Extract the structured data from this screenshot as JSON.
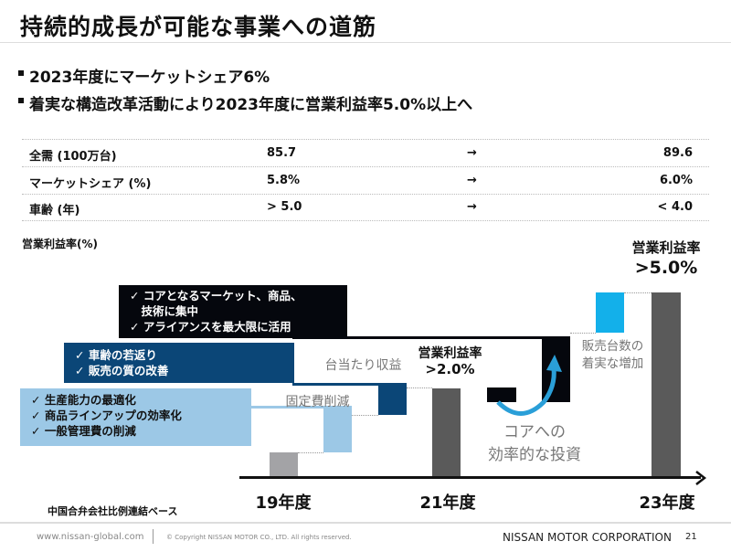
{
  "title": "持続的成長が可能な事業への道筋",
  "bullets": [
    "2023年度にマーケットシェア6%",
    "着実な構造改革活動により2023年度に営業利益率5.0%以上へ"
  ],
  "table": [
    {
      "label": "全需 (100万台)",
      "from": "85.7",
      "arrow": "→",
      "to": "89.6"
    },
    {
      "label": "マーケットシェア (%)",
      "from": "5.8%",
      "arrow": "→",
      "to": "6.0%"
    },
    {
      "label": "車齢 (年)",
      "from": "> 5.0",
      "arrow": "→",
      "to": "< 4.0"
    }
  ],
  "chart": {
    "ylabel": "営業利益率(%)",
    "black_box": [
      "✓ コアとなるマーケット、商品、",
      "　技術に集中",
      "✓ アライアンスを最大限に活用"
    ],
    "dark_box": [
      "✓ 車齢の若返り",
      "✓ 販売の質の改善"
    ],
    "light_box": [
      "✓ 生産能力の最適化",
      "✓ 商品ラインアップの効率化",
      "✓ 一般管理費の削減"
    ],
    "fixed_cost": "固定費削減",
    "unit_revenue": "台当たり収益",
    "mid_label": "営業利益率",
    "mid_value": ">2.0%",
    "core_invest": [
      "コアへの",
      "効率的な投資"
    ],
    "sales_increase": [
      "販売台数の",
      "着実な増加"
    ],
    "end_label": "営業利益率",
    "end_value": ">5.0%",
    "years": [
      "19年度",
      "21年度",
      "23年度"
    ],
    "note": "中国合弁会社比例連結ベース",
    "colors": {
      "black": "#05070d",
      "dark_blue": "#0b4677",
      "light_blue": "#9cc8e6",
      "cyan": "#13b0ea",
      "bar_gray": "#5a5a5a",
      "bar_19": "#a3a3a6"
    }
  },
  "footer": {
    "url": "www.nissan-global.com",
    "copyright": "© Copyright NISSAN MOTOR CO., LTD. All rights reserved.",
    "company": "NISSAN MOTOR CORPORATION",
    "page": "21"
  }
}
